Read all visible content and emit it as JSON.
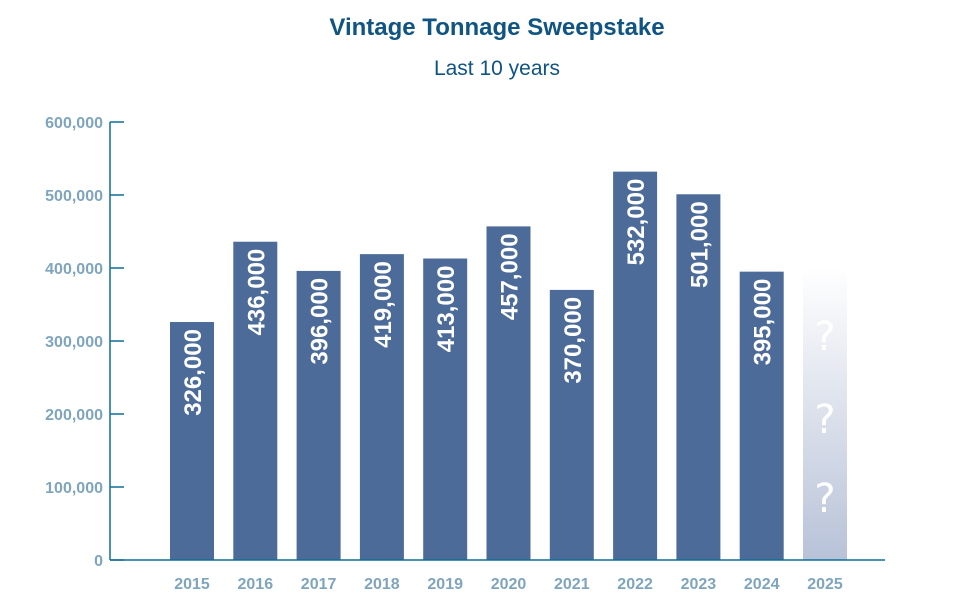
{
  "chart_data": {
    "type": "bar",
    "title": "Vintage Tonnage Sweepstake",
    "subtitle": "Last 10 years",
    "xlabel": "",
    "ylabel": "",
    "categories": [
      "2015",
      "2016",
      "2017",
      "2018",
      "2019",
      "2020",
      "2021",
      "2022",
      "2023",
      "2024",
      "2025"
    ],
    "values": [
      326000,
      436000,
      396000,
      419000,
      413000,
      457000,
      370000,
      532000,
      501000,
      395000,
      null
    ],
    "value_labels": [
      "326,000",
      "436,000",
      "396,000",
      "419,000",
      "413,000",
      "457,000",
      "370,000",
      "532,000",
      "501,000",
      "395,000",
      ""
    ],
    "placeholder": {
      "category": "2025",
      "label": "?",
      "count": 3,
      "height_value": 400000
    },
    "ylim": [
      0,
      600000
    ],
    "yticks": [
      0,
      100000,
      200000,
      300000,
      400000,
      500000,
      600000
    ],
    "ytick_labels": [
      "0",
      "100,000",
      "200,000",
      "300,000",
      "400,000",
      "500,000",
      "600,000"
    ],
    "grid": false,
    "legend": "none",
    "colors": {
      "bar": "#4d6b99",
      "axis": "#0f6e96",
      "title": "#0f5482",
      "tick_text": "#7fa5bd",
      "placeholder_gradient_top": "#ffffff",
      "placeholder_gradient_bottom": "#b8c2d8"
    }
  }
}
